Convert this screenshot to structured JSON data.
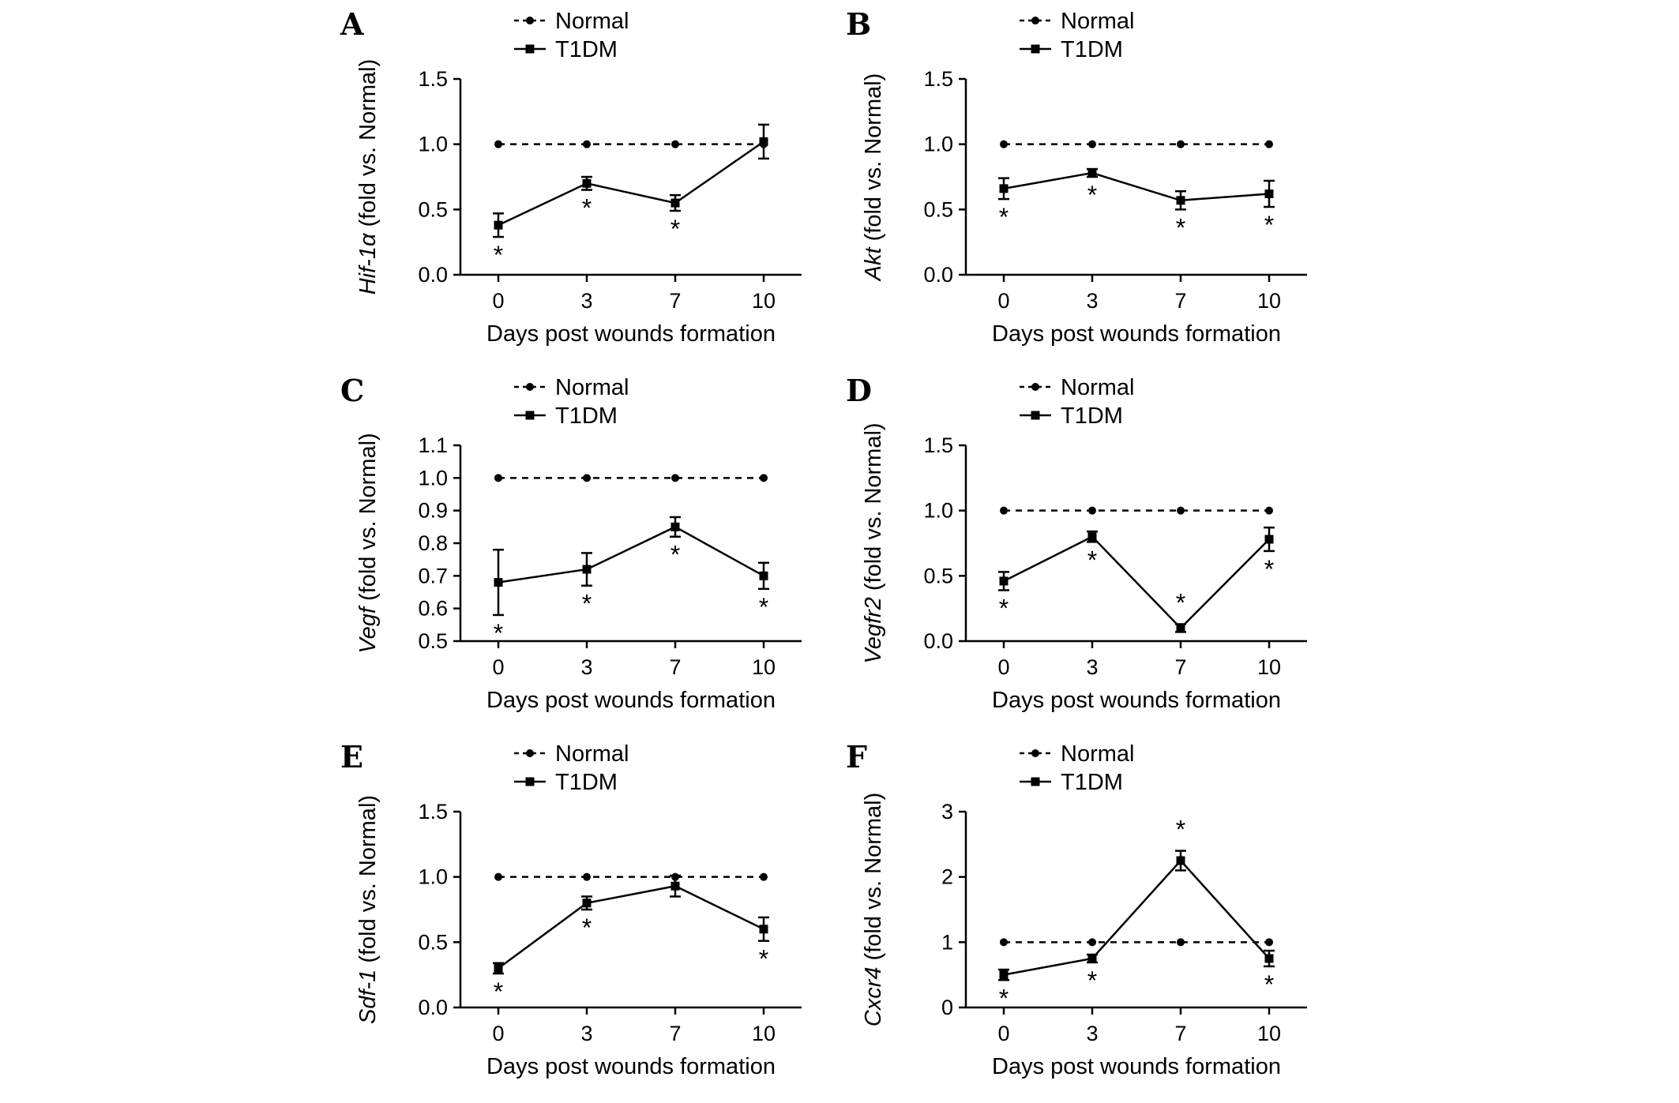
{
  "figure": {
    "background": "#ffffff",
    "xlabel": "Days post wounds formation",
    "ylabel_suffix": " (fold vs. Normal)",
    "significance_symbol": "*",
    "line_color": "#000000",
    "legend_entries": [
      "Normal",
      "T1DM"
    ]
  },
  "chart_data": [
    {
      "type": "line",
      "panel_letter": "A",
      "gene": "Hif-1α",
      "ylabel": "Hif-1α (fold vs. Normal)",
      "xlabel": "Days post wounds formation",
      "x_categories": [
        "0",
        "3",
        "7",
        "10"
      ],
      "ylim": [
        0.0,
        1.5
      ],
      "ytick_labels": [
        "0.0",
        "0.5",
        "1.0",
        "1.5"
      ],
      "legend_position": "top-inside",
      "series": [
        {
          "name": "Normal",
          "marker": "circle",
          "line_style": "dashed",
          "values": [
            1.0,
            1.0,
            1.0,
            1.0
          ]
        },
        {
          "name": "T1DM",
          "marker": "square",
          "line_style": "solid",
          "values": [
            0.38,
            0.7,
            0.55,
            1.02
          ],
          "errors": [
            0.09,
            0.05,
            0.06,
            0.13
          ]
        }
      ],
      "significance": [
        {
          "x": "0",
          "placement": "below"
        },
        {
          "x": "3",
          "placement": "below"
        },
        {
          "x": "7",
          "placement": "below"
        }
      ]
    },
    {
      "type": "line",
      "panel_letter": "B",
      "gene": "Akt",
      "ylabel": "Akt (fold vs. Normal)",
      "xlabel": "Days post wounds formation",
      "x_categories": [
        "0",
        "3",
        "7",
        "10"
      ],
      "ylim": [
        0.0,
        1.5
      ],
      "ytick_labels": [
        "0.0",
        "0.5",
        "1.0",
        "1.5"
      ],
      "legend_position": "top-inside",
      "series": [
        {
          "name": "Normal",
          "marker": "circle",
          "line_style": "dashed",
          "values": [
            1.0,
            1.0,
            1.0,
            1.0
          ]
        },
        {
          "name": "T1DM",
          "marker": "square",
          "line_style": "solid",
          "values": [
            0.66,
            0.78,
            0.57,
            0.62
          ],
          "errors": [
            0.08,
            0.03,
            0.07,
            0.1
          ]
        }
      ],
      "significance": [
        {
          "x": "0",
          "placement": "below"
        },
        {
          "x": "3",
          "placement": "below"
        },
        {
          "x": "7",
          "placement": "below"
        },
        {
          "x": "10",
          "placement": "below"
        }
      ]
    },
    {
      "type": "line",
      "panel_letter": "C",
      "gene": "Vegf",
      "ylabel": "Vegf (fold vs. Normal)",
      "xlabel": "Days post wounds formation",
      "x_categories": [
        "0",
        "3",
        "7",
        "10"
      ],
      "ylim": [
        0.5,
        1.1
      ],
      "ytick_labels": [
        "0.5",
        "0.6",
        "0.7",
        "0.8",
        "0.9",
        "1.0",
        "1.1"
      ],
      "legend_position": "top-inside",
      "series": [
        {
          "name": "Normal",
          "marker": "circle",
          "line_style": "dashed",
          "values": [
            1.0,
            1.0,
            1.0,
            1.0
          ]
        },
        {
          "name": "T1DM",
          "marker": "square",
          "line_style": "solid",
          "values": [
            0.68,
            0.72,
            0.85,
            0.7
          ],
          "errors": [
            0.1,
            0.05,
            0.03,
            0.04
          ]
        }
      ],
      "significance": [
        {
          "x": "0",
          "placement": "below"
        },
        {
          "x": "3",
          "placement": "below"
        },
        {
          "x": "7",
          "placement": "below"
        },
        {
          "x": "10",
          "placement": "below"
        }
      ]
    },
    {
      "type": "line",
      "panel_letter": "D",
      "gene": "Vegfr2",
      "ylabel": "Vegfr2 (fold vs. Normal)",
      "xlabel": "Days post wounds formation",
      "x_categories": [
        "0",
        "3",
        "7",
        "10"
      ],
      "ylim": [
        0.0,
        1.5
      ],
      "ytick_labels": [
        "0.0",
        "0.5",
        "1.0",
        "1.5"
      ],
      "legend_position": "top-inside",
      "series": [
        {
          "name": "Normal",
          "marker": "circle",
          "line_style": "dashed",
          "values": [
            1.0,
            1.0,
            1.0,
            1.0
          ]
        },
        {
          "name": "T1DM",
          "marker": "square",
          "line_style": "solid",
          "values": [
            0.46,
            0.8,
            0.1,
            0.78
          ],
          "errors": [
            0.07,
            0.04,
            0.03,
            0.09
          ]
        }
      ],
      "significance": [
        {
          "x": "0",
          "placement": "below"
        },
        {
          "x": "3",
          "placement": "below"
        },
        {
          "x": "7",
          "placement": "above"
        },
        {
          "x": "10",
          "placement": "below"
        }
      ]
    },
    {
      "type": "line",
      "panel_letter": "E",
      "gene": "Sdf-1",
      "ylabel": "Sdf-1 (fold vs. Normal)",
      "xlabel": "Days post wounds formation",
      "x_categories": [
        "0",
        "3",
        "7",
        "10"
      ],
      "ylim": [
        0.0,
        1.5
      ],
      "ytick_labels": [
        "0.0",
        "0.5",
        "1.0",
        "1.5"
      ],
      "legend_position": "top-inside",
      "series": [
        {
          "name": "Normal",
          "marker": "circle",
          "line_style": "dashed",
          "values": [
            1.0,
            1.0,
            1.0,
            1.0
          ]
        },
        {
          "name": "T1DM",
          "marker": "square",
          "line_style": "solid",
          "values": [
            0.3,
            0.8,
            0.93,
            0.6
          ],
          "errors": [
            0.04,
            0.05,
            0.08,
            0.09
          ]
        }
      ],
      "significance": [
        {
          "x": "0",
          "placement": "below"
        },
        {
          "x": "3",
          "placement": "below"
        },
        {
          "x": "10",
          "placement": "below"
        }
      ]
    },
    {
      "type": "line",
      "panel_letter": "F",
      "gene": "Cxcr4",
      "ylabel": "Cxcr4 (fold vs. Normal)",
      "xlabel": "Days post wounds formation",
      "x_categories": [
        "0",
        "3",
        "7",
        "10"
      ],
      "ylim": [
        0,
        3
      ],
      "ytick_labels": [
        "0",
        "1",
        "2",
        "3"
      ],
      "legend_position": "top-inside",
      "series": [
        {
          "name": "Normal",
          "marker": "circle",
          "line_style": "dashed",
          "values": [
            1.0,
            1.0,
            1.0,
            1.0
          ]
        },
        {
          "name": "T1DM",
          "marker": "square",
          "line_style": "solid",
          "values": [
            0.5,
            0.75,
            2.25,
            0.75
          ],
          "errors": [
            0.08,
            0.06,
            0.15,
            0.12
          ]
        }
      ],
      "significance": [
        {
          "x": "0",
          "placement": "below"
        },
        {
          "x": "3",
          "placement": "below"
        },
        {
          "x": "7",
          "placement": "above"
        },
        {
          "x": "10",
          "placement": "below"
        }
      ]
    }
  ]
}
